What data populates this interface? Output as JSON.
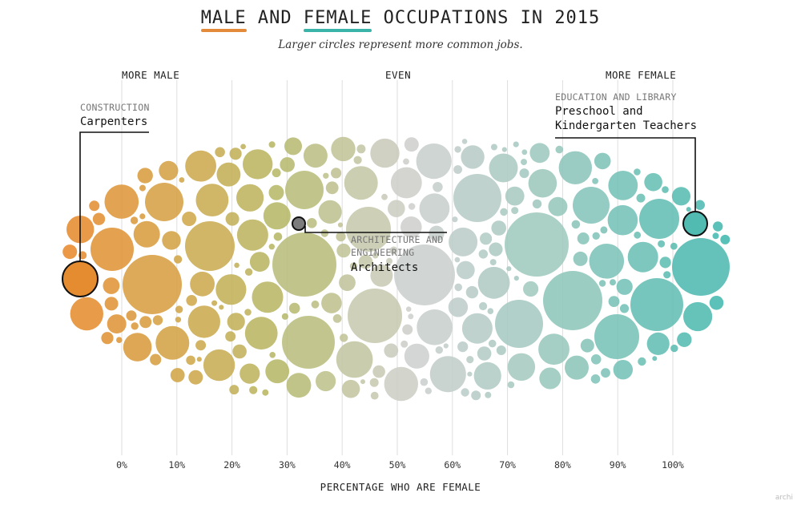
{
  "title": {
    "part1": "MALE",
    "and": " AND ",
    "part2": "FEMALE",
    "rest": " OCCUPATIONS IN 2015"
  },
  "subtitle": "Larger circles represent more common jobs.",
  "directions": {
    "male": "MORE MALE",
    "even": "EVEN",
    "female": "MORE FEMALE"
  },
  "annotations": [
    {
      "category": "CONSTRUCTION",
      "job": "Carpenters"
    },
    {
      "category": "ARCHITECTURE AND",
      "category2": "ENGINEERING",
      "job": "Architects"
    },
    {
      "category": "EDUCATION AND LIBRARY",
      "job": "Preschool and",
      "job2": "Kindergarten Teachers"
    }
  ],
  "xlabel": "PERCENTAGE WHO ARE FEMALE",
  "credit": "archi",
  "colors": {
    "male": "#e88a2e",
    "mid": "#cfd0cf",
    "female": "#40b8ae",
    "olive": "#b5b560",
    "title_male": "#e38b3a",
    "title_female": "#3ab3a8"
  },
  "chart_data": {
    "type": "scatter",
    "title": "MALE AND FEMALE OCCUPATIONS IN 2015",
    "subtitle": "Larger circles represent more common jobs.",
    "xlabel": "PERCENTAGE WHO ARE FEMALE",
    "ylabel": "",
    "xlim": [
      0,
      100
    ],
    "ticks": [
      "0%",
      "10%",
      "20%",
      "30%",
      "40%",
      "50%",
      "60%",
      "70%",
      "80%",
      "90%",
      "100%"
    ],
    "grid": true,
    "encoding": "beeswarm; x = percentage female, circle area = number employed",
    "highlighted": [
      {
        "name": "Carpenters",
        "category": "CONSTRUCTION",
        "percent_female": 1
      },
      {
        "name": "Architects",
        "category": "ARCHITECTURE AND ENGINEERING",
        "percent_female": 32
      },
      {
        "name": "Preschool and Kindergarten Teachers",
        "category": "EDUCATION AND LIBRARY",
        "percent_female": 98
      }
    ]
  }
}
